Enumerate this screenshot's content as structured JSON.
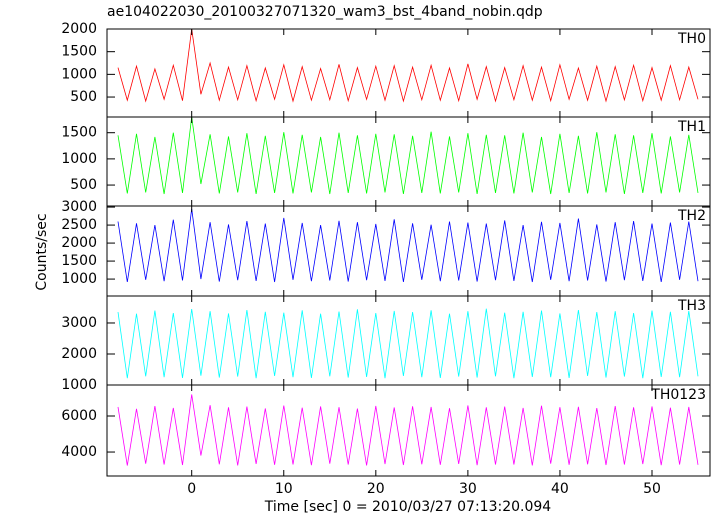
{
  "chart_data": {
    "type": "line",
    "title": "ae104022030_20100327071320_wam3_bst_4band_nobin.qdp",
    "x_label": "Time [sec] 0 = 2010/03/27 07:13:20.094",
    "y_label": "Counts/sec",
    "xlim": [
      -9.2,
      56.3
    ],
    "xticks": [
      0,
      10,
      20,
      30,
      40,
      50
    ],
    "x": [
      -8,
      -7,
      -6,
      -5,
      -4,
      -3,
      -2,
      -1,
      0,
      1,
      2,
      3,
      4,
      5,
      6,
      7,
      8,
      9,
      10,
      11,
      12,
      13,
      14,
      15,
      16,
      17,
      18,
      19,
      20,
      21,
      22,
      23,
      24,
      25,
      26,
      27,
      28,
      29,
      30,
      31,
      32,
      33,
      34,
      35,
      36,
      37,
      38,
      39,
      40,
      41,
      42,
      43,
      44,
      45,
      46,
      47,
      48,
      49,
      50,
      51,
      52,
      53,
      54,
      55
    ],
    "series": [
      {
        "name": "TH0",
        "color": "#ff0000",
        "ylim": [
          60,
          2000
        ],
        "yticks": [
          500,
          1000,
          1500,
          2000
        ],
        "values": [
          1150,
          430,
          1180,
          410,
          1120,
          450,
          1200,
          420,
          2000,
          560,
          1250,
          430,
          1160,
          440,
          1190,
          420,
          1140,
          450,
          1210,
          410,
          1170,
          430,
          1130,
          440,
          1220,
          420,
          1150,
          450,
          1180,
          430,
          1190,
          410,
          1160,
          440,
          1200,
          430,
          1140,
          420,
          1230,
          450,
          1170,
          410,
          1150,
          440,
          1190,
          430,
          1160,
          420,
          1210,
          450,
          1140,
          430,
          1180,
          410,
          1170,
          440,
          1200,
          420,
          1150,
          430,
          1190,
          440,
          1160,
          450
        ]
      },
      {
        "name": "TH1",
        "color": "#00ff00",
        "ylim": [
          100,
          1800
        ],
        "yticks": [
          500,
          1000,
          1500
        ],
        "values": [
          1450,
          340,
          1480,
          360,
          1420,
          330,
          1500,
          350,
          1800,
          520,
          1470,
          340,
          1430,
          360,
          1490,
          330,
          1440,
          350,
          1510,
          340,
          1460,
          360,
          1420,
          330,
          1500,
          350,
          1450,
          340,
          1480,
          360,
          1470,
          330,
          1440,
          350,
          1520,
          340,
          1430,
          360,
          1490,
          330,
          1460,
          350,
          1450,
          340,
          1500,
          360,
          1420,
          330,
          1480,
          350,
          1440,
          340,
          1510,
          360,
          1470,
          330,
          1450,
          350,
          1490,
          340,
          1430,
          360,
          1460,
          350
        ]
      },
      {
        "name": "TH2",
        "color": "#0000ff",
        "ylim": [
          530,
          3030
        ],
        "yticks": [
          1000,
          1500,
          2000,
          2500,
          3000
        ],
        "values": [
          2600,
          920,
          2550,
          980,
          2500,
          940,
          2650,
          960,
          2950,
          1000,
          2580,
          930,
          2520,
          970,
          2610,
          950,
          2540,
          920,
          2700,
          980,
          2560,
          940,
          2500,
          960,
          2620,
          930,
          2580,
          970,
          2530,
          950,
          2660,
          920,
          2550,
          980,
          2510,
          940,
          2600,
          960,
          2570,
          930,
          2540,
          970,
          2630,
          950,
          2500,
          920,
          2590,
          980,
          2560,
          940,
          2680,
          960,
          2520,
          930,
          2580,
          970,
          2610,
          950,
          2540,
          920,
          2570,
          980,
          2600,
          940
        ]
      },
      {
        "name": "TH3",
        "color": "#00ffff",
        "ylim": [
          1000,
          3870
        ],
        "yticks": [
          1000,
          2000,
          3000
        ],
        "values": [
          3350,
          1220,
          3300,
          1280,
          3400,
          1250,
          3320,
          1230,
          3450,
          1300,
          3380,
          1240,
          3310,
          1270,
          3420,
          1220,
          3360,
          1290,
          3330,
          1250,
          3410,
          1230,
          3300,
          1280,
          3370,
          1240,
          3440,
          1260,
          3320,
          1220,
          3390,
          1290,
          3350,
          1250,
          3410,
          1230,
          3300,
          1270,
          3380,
          1240,
          3460,
          1280,
          3330,
          1220,
          3360,
          1260,
          3400,
          1250,
          3310,
          1230,
          3420,
          1290,
          3350,
          1240,
          3380,
          1270,
          3320,
          1220,
          3400,
          1260,
          3360,
          1250,
          3390,
          1280
        ]
      },
      {
        "name": "TH0123",
        "color": "#ff00ff",
        "ylim": [
          2670,
          7720
        ],
        "yticks": [
          4000,
          6000
        ],
        "values": [
          6500,
          3250,
          6400,
          3350,
          6550,
          3300,
          6450,
          3280,
          7200,
          3800,
          6600,
          3320,
          6480,
          3260,
          6520,
          3340,
          6420,
          3290,
          6580,
          3310,
          6460,
          3270,
          6530,
          3350,
          6490,
          3300,
          6410,
          3260,
          6560,
          3330,
          6470,
          3280,
          6540,
          3320,
          6500,
          3290,
          6430,
          3340,
          6590,
          3270,
          6480,
          3300,
          6520,
          3310,
          6450,
          3260,
          6570,
          3350,
          6490,
          3290,
          6510,
          3320,
          6440,
          3280,
          6550,
          3300,
          6480,
          3330,
          6530,
          3270,
          6460,
          3310,
          6500,
          3290
        ]
      }
    ]
  }
}
